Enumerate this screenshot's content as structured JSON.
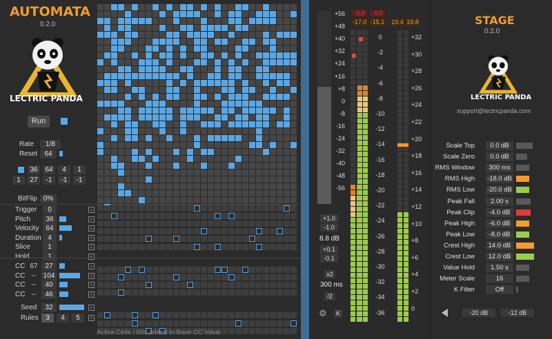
{
  "automata": {
    "title": "AUTOMATA",
    "version": "0.2.0",
    "brand": "LECTRIC PANDA",
    "run_label": "Run",
    "rate": {
      "label": "Rate",
      "value": "1/8"
    },
    "reset": {
      "label": "Reset",
      "value": "64"
    },
    "rule_row1": [
      "36",
      "64",
      "4",
      "1"
    ],
    "rule_row2": [
      "1",
      "27",
      "-1",
      "-1",
      "-1"
    ],
    "bitflip": {
      "label": "BitFlip",
      "value": "0%"
    },
    "params": [
      {
        "label": "Trigger",
        "value": "0",
        "level": 0
      },
      {
        "label": "Pitch",
        "value": "36",
        "level": 0.28
      },
      {
        "label": "Velocity",
        "value": "64",
        "level": 0.5
      },
      {
        "label": "Duration",
        "value": "4",
        "level": 0.1
      },
      {
        "label": "Slice",
        "value": "1",
        "level": 0
      },
      {
        "label": "Hold",
        "value": "1",
        "level": 0
      }
    ],
    "cc": [
      {
        "label": "CC",
        "num": "67",
        "value": "27",
        "level": 0.21
      },
      {
        "label": "CC",
        "num": "--",
        "value": "104",
        "level": 0.82
      },
      {
        "label": "CC",
        "num": "--",
        "value": "40",
        "level": 0.32
      },
      {
        "label": "CC",
        "num": "--",
        "value": "46",
        "level": 0.36
      }
    ],
    "seed": {
      "label": "Seed",
      "value": "32"
    },
    "rules": {
      "label": "Rules",
      "values": [
        "3",
        "4",
        "5"
      ]
    },
    "footer": "Active Cells / Bits added to Base CC Value",
    "colors": {
      "accent": "#5aa7e6",
      "title": "#f39c2a"
    }
  },
  "meters": {
    "left_scale": [
      "+56",
      "+48",
      "+40",
      "+32",
      "+24",
      "+16",
      "+8",
      "0",
      "-8",
      "-16",
      "-24",
      "-32",
      "-40",
      "-48",
      "-56"
    ],
    "peak_red": [
      "-2.0",
      "-0.0"
    ],
    "peak_orange": [
      "-17.0",
      "-15.1",
      "19.4",
      "19.8"
    ],
    "mid_scale": [
      "0",
      "-2",
      "-4",
      "-6",
      "-8",
      "-10",
      "-12",
      "-14",
      "-16",
      "-18",
      "-20",
      "-22",
      "-24",
      "-26",
      "-28",
      "-30",
      "-32",
      "-34",
      "-36"
    ],
    "right_scale": [
      "+32",
      "+30",
      "+28",
      "+26",
      "+24",
      "+22",
      "+20",
      "+18",
      "+16",
      "+14",
      "+12",
      "+10",
      "+8",
      "+6",
      "+4",
      "+2",
      "0"
    ],
    "buttons": [
      "+1.0",
      "-1.0",
      "8.8 dB",
      "+0.1",
      "-0.1",
      "x2",
      "300 ms",
      "/2"
    ],
    "k_label": "K"
  },
  "stage": {
    "title": "STAGE",
    "version": "0.2.0",
    "brand": "LECTRIC PANDA",
    "support": "support@lectricpanda.com",
    "rows": [
      {
        "label": "Scale Top",
        "value": "0.0 dB",
        "color": "#595959",
        "level": 0.9
      },
      {
        "label": "Scale Zero",
        "value": "0.0 dB",
        "color": "#595959",
        "level": 0.6
      },
      {
        "label": "RMS Window",
        "value": "300 ms",
        "color": "#595959",
        "level": 0.7
      },
      {
        "label": "RMS High",
        "value": "-18.0 dB",
        "color": "#f39c2a",
        "level": 0.7
      },
      {
        "label": "RMS Low",
        "value": "-20.0 dB",
        "color": "#9ccc4a",
        "level": 0.7
      },
      {
        "label": "Peak Fall",
        "value": "2.00 s",
        "color": "#595959",
        "level": 0.8
      },
      {
        "label": "Peak Clip",
        "value": "-4.0 dB",
        "color": "#e03c3c",
        "level": 0.8
      },
      {
        "label": "Peak High",
        "value": "-6.0 dB",
        "color": "#f39c2a",
        "level": 0.7
      },
      {
        "label": "Peak Low",
        "value": "-8.0 dB",
        "color": "#9ccc4a",
        "level": 0.7
      },
      {
        "label": "Crest High",
        "value": "14.0 dB",
        "color": "#f39c2a",
        "level": 1.0
      },
      {
        "label": "Crest Low",
        "value": "12.0 dB",
        "color": "#9ccc4a",
        "level": 1.0
      },
      {
        "label": "Value Hold",
        "value": "1.50 s",
        "color": "#595959",
        "level": 0.7
      },
      {
        "label": "Meter Scale",
        "value": "16",
        "color": "#595959",
        "level": 0.7
      },
      {
        "label": "K Filter",
        "value": "Off",
        "color": "#595959",
        "level": 0
      }
    ],
    "bottom_buttons": [
      "-20 dB",
      "-12 dB"
    ]
  }
}
